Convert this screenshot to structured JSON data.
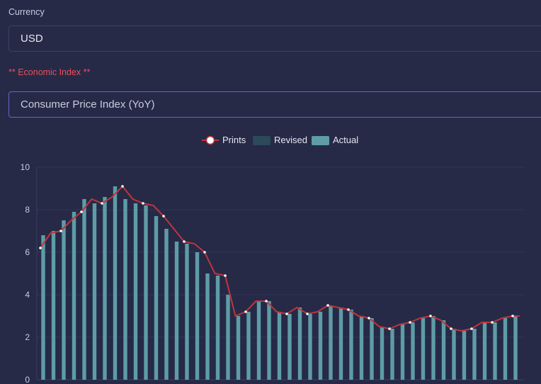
{
  "form": {
    "currency_label": "Currency",
    "currency_value": "USD",
    "index_label": "** Economic Index **",
    "index_value": "Consumer Price Index (YoY)"
  },
  "chart_data": {
    "type": "bar",
    "title": "",
    "xlabel": "",
    "ylabel": "",
    "ylim": [
      0,
      10
    ],
    "yticks": [
      0,
      2,
      4,
      6,
      8,
      10
    ],
    "grid": true,
    "legend_position": "top-center",
    "legend": [
      {
        "key": "prints",
        "label": "Prints",
        "color": "#c0353b"
      },
      {
        "key": "revised",
        "label": "Revised",
        "color": "#2c4a59"
      },
      {
        "key": "actual",
        "label": "Actual",
        "color": "#5e9ca6"
      }
    ],
    "series": [
      {
        "name": "Actual",
        "type": "bar",
        "values": [
          6.8,
          7.0,
          7.5,
          7.9,
          8.5,
          8.3,
          8.6,
          9.1,
          8.5,
          8.3,
          8.2,
          7.7,
          7.1,
          6.5,
          6.4,
          6.0,
          5.0,
          4.9,
          4.0,
          3.0,
          3.2,
          3.7,
          3.7,
          3.2,
          3.1,
          3.4,
          3.1,
          3.2,
          3.5,
          3.4,
          3.3,
          3.0,
          2.9,
          2.5,
          2.4,
          2.6,
          2.7,
          2.9,
          3.0,
          2.8,
          2.4,
          2.3,
          2.4,
          2.7,
          2.7,
          2.9,
          3.0
        ]
      },
      {
        "name": "Prints",
        "type": "line",
        "values": [
          6.2,
          6.9,
          7.0,
          7.5,
          7.9,
          8.5,
          8.3,
          8.6,
          9.1,
          8.5,
          8.3,
          8.2,
          7.7,
          7.1,
          6.5,
          6.4,
          6.0,
          5.0,
          4.9,
          3.0,
          3.2,
          3.7,
          3.7,
          3.2,
          3.1,
          3.4,
          3.1,
          3.2,
          3.5,
          3.4,
          3.3,
          3.0,
          2.9,
          2.5,
          2.4,
          2.6,
          2.7,
          2.9,
          3.0,
          2.8,
          2.4,
          2.3,
          2.4,
          2.7,
          2.7,
          2.9,
          3.0
        ],
        "last_value": 3.0
      }
    ]
  }
}
